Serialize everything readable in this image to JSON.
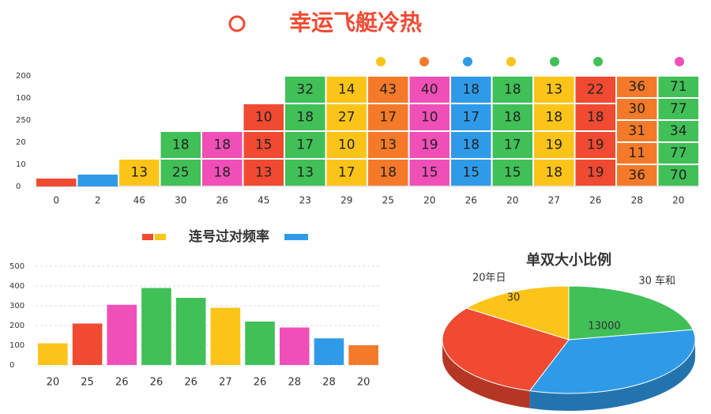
{
  "chart_data": [
    {
      "type": "cell-columns",
      "title": "幸运飞艇冷热",
      "y_labels": [
        "200",
        "100",
        "250",
        "20",
        "10",
        "0"
      ],
      "categories": [
        "0",
        "2",
        "46",
        "30",
        "26",
        "45",
        "23",
        "29",
        "25",
        "20",
        "26",
        "20",
        "27",
        "26",
        "28",
        "20"
      ],
      "colors": [
        "#f04a32",
        "#2f9be8",
        "#fcc419",
        "#40c057",
        "#f04fb8",
        "#f04a32",
        "#40c057",
        "#fcc419",
        "#f47a2a",
        "#f04fb8",
        "#2f9be8",
        "#40c057",
        "#fcc419",
        "#f04a32",
        "#f47a2a",
        "#40c057"
      ],
      "cells": [
        [],
        [],
        [
          13
        ],
        [
          18,
          25
        ],
        [
          18,
          18
        ],
        [
          10,
          15,
          13
        ],
        [
          32,
          18,
          17,
          13
        ],
        [
          14,
          27,
          10,
          17
        ],
        [
          43,
          17,
          13,
          18
        ],
        [
          40,
          10,
          19,
          15
        ],
        [
          18,
          17,
          18,
          15
        ],
        [
          18,
          18,
          17,
          15
        ],
        [
          13,
          18,
          19,
          18
        ],
        [
          22,
          18,
          19,
          19
        ],
        [
          36,
          30,
          31,
          11,
          36
        ],
        [
          71,
          77,
          34,
          77,
          70
        ]
      ]
    },
    {
      "type": "bar",
      "title": "连号过对频率",
      "categories": [
        "20",
        "25",
        "26",
        "26",
        "26",
        "27",
        "26",
        "28",
        "28",
        "20"
      ],
      "values": [
        110,
        210,
        305,
        390,
        340,
        290,
        220,
        190,
        135,
        100
      ],
      "colors": [
        "#fcc419",
        "#f04a32",
        "#f04fb8",
        "#40c057",
        "#40c057",
        "#fcc419",
        "#40c057",
        "#f04fb8",
        "#2f9be8",
        "#f47a2a"
      ],
      "ylim": [
        0,
        500
      ],
      "yticks": [
        0,
        100,
        200,
        300,
        400,
        500
      ],
      "grid": true
    },
    {
      "type": "pie",
      "title": "单双大小比例",
      "values": [
        22,
        33,
        30,
        15
      ],
      "colors": [
        "#40c057",
        "#2f9be8",
        "#f04a32",
        "#fcc419"
      ],
      "annotations": [
        "20年日",
        "30 车和",
        "30",
        "13000"
      ]
    }
  ]
}
